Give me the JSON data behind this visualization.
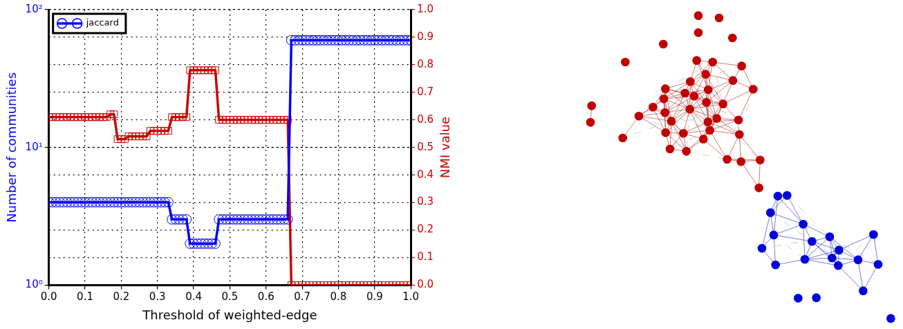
{
  "chart_data": {
    "type": "line",
    "xlabel": "Threshold of weighted-edge",
    "ylabel": "Number of communities",
    "y2label": "NMI value",
    "x": [
      0,
      0.01,
      0.02,
      0.03,
      0.04,
      0.05,
      0.06,
      0.07,
      0.08,
      0.09,
      0.1,
      0.11,
      0.12,
      0.13,
      0.14,
      0.15,
      0.16,
      0.17,
      0.18,
      0.19,
      0.2,
      0.21,
      0.22,
      0.23,
      0.24,
      0.25,
      0.26,
      0.27,
      0.28,
      0.29,
      0.3,
      0.31,
      0.32,
      0.33,
      0.34,
      0.35,
      0.36,
      0.37,
      0.38,
      0.39,
      0.4,
      0.41,
      0.42,
      0.43,
      0.44,
      0.45,
      0.46,
      0.47,
      0.48,
      0.49,
      0.5,
      0.51,
      0.52,
      0.53,
      0.54,
      0.55,
      0.56,
      0.57,
      0.58,
      0.59,
      0.6,
      0.61,
      0.62,
      0.63,
      0.64,
      0.65,
      0.66,
      0.67,
      0.68,
      0.69,
      0.7,
      0.71,
      0.72,
      0.73,
      0.74,
      0.75,
      0.76,
      0.77,
      0.78,
      0.79,
      0.8,
      0.81,
      0.82,
      0.83,
      0.84,
      0.85,
      0.86,
      0.87,
      0.88,
      0.89,
      0.9,
      0.91,
      0.92,
      0.93,
      0.94,
      0.95,
      0.96,
      0.97,
      0.98,
      0.99,
      1
    ],
    "series": [
      {
        "name": "jaccard",
        "color": "#0000ff",
        "marker": "circle",
        "values": [
          4,
          4,
          4,
          4,
          4,
          4,
          4,
          4,
          4,
          4,
          4,
          4,
          4,
          4,
          4,
          4,
          4,
          4,
          4,
          4,
          4,
          4,
          4,
          4,
          4,
          4,
          4,
          4,
          4,
          4,
          4,
          4,
          4,
          4,
          3,
          3,
          3,
          3,
          3,
          2,
          2,
          2,
          2,
          2,
          2,
          2,
          2,
          3,
          3,
          3,
          3,
          3,
          3,
          3,
          3,
          3,
          3,
          3,
          3,
          3,
          3,
          3,
          3,
          3,
          3,
          3,
          3,
          60,
          60,
          60,
          60,
          60,
          60,
          60,
          60,
          60,
          60,
          60,
          60,
          60,
          60,
          60,
          60,
          60,
          60,
          60,
          60,
          60,
          60,
          60,
          60,
          60,
          60,
          60,
          60,
          60,
          60,
          60,
          60,
          60,
          60
        ]
      },
      {
        "color": "#cc0000",
        "marker": "square",
        "axis": "y2",
        "values": [
          0.61,
          0.61,
          0.61,
          0.61,
          0.61,
          0.61,
          0.61,
          0.61,
          0.61,
          0.61,
          0.61,
          0.61,
          0.61,
          0.61,
          0.61,
          0.61,
          0.61,
          0.62,
          0.62,
          0.53,
          0.53,
          0.53,
          0.54,
          0.54,
          0.54,
          0.54,
          0.54,
          0.54,
          0.56,
          0.56,
          0.56,
          0.56,
          0.56,
          0.56,
          0.61,
          0.61,
          0.61,
          0.61,
          0.61,
          0.78,
          0.78,
          0.78,
          0.78,
          0.78,
          0.78,
          0.78,
          0.78,
          0.6,
          0.6,
          0.6,
          0.6,
          0.6,
          0.6,
          0.6,
          0.6,
          0.6,
          0.6,
          0.6,
          0.6,
          0.6,
          0.6,
          0.6,
          0.6,
          0.6,
          0.6,
          0.6,
          0.6,
          0,
          0,
          0,
          0,
          0,
          0,
          0,
          0,
          0,
          0,
          0,
          0,
          0,
          0,
          0,
          0,
          0,
          0,
          0,
          0,
          0,
          0,
          0,
          0,
          0,
          0,
          0,
          0,
          0,
          0,
          0,
          0,
          0,
          0
        ]
      }
    ],
    "xlim": [
      0,
      1
    ],
    "xticks": [
      {
        "value": 0,
        "label": "0.0"
      },
      {
        "value": 0.1,
        "label": "0.1"
      },
      {
        "value": 0.2,
        "label": "0.2"
      },
      {
        "value": 0.3,
        "label": "0.3"
      },
      {
        "value": 0.4,
        "label": "0.4"
      },
      {
        "value": 0.5,
        "label": "0.5"
      },
      {
        "value": 0.6,
        "label": "0.6"
      },
      {
        "value": 0.7,
        "label": "0.7"
      },
      {
        "value": 0.8,
        "label": "0.8"
      },
      {
        "value": 0.9,
        "label": "0.9"
      },
      {
        "value": 1,
        "label": "1.0"
      }
    ],
    "ylim": [
      1,
      100
    ],
    "yticks": [
      {
        "value": 1,
        "label": "10⁰"
      },
      {
        "value": 10,
        "label": "10¹"
      },
      {
        "value": 100,
        "label": "10²"
      }
    ],
    "y2lim": [
      0,
      1
    ],
    "y2ticks": [
      {
        "value": 0,
        "label": "0.0"
      },
      {
        "value": 0.1,
        "label": "0.1"
      },
      {
        "value": 0.2,
        "label": "0.2"
      },
      {
        "value": 0.3,
        "label": "0.3"
      },
      {
        "value": 0.4,
        "label": "0.4"
      },
      {
        "value": 0.5,
        "label": "0.5"
      },
      {
        "value": 0.6,
        "label": "0.6"
      },
      {
        "value": 0.7,
        "label": "0.7"
      },
      {
        "value": 0.8,
        "label": "0.8"
      },
      {
        "value": 0.9,
        "label": "0.9"
      },
      {
        "value": 1,
        "label": "1.0"
      }
    ],
    "log": "y",
    "grid": true,
    "legend": "top left",
    "line_style": "solid"
  }
}
